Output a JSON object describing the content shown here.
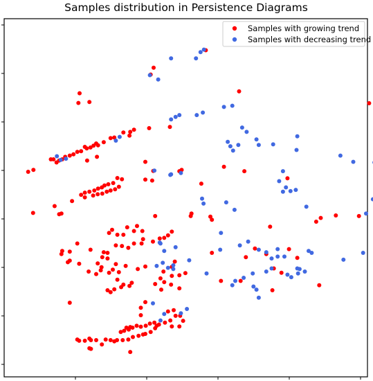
{
  "chart_data": {
    "type": "scatter",
    "title": "Samples distribution in Persistence Diagrams",
    "xlabel": "",
    "ylabel": "",
    "xlim": [
      0,
      1
    ],
    "ylim": [
      0,
      1
    ],
    "grid": false,
    "legend_position": "top-right",
    "series": [
      {
        "name": "Samples with growing trend",
        "color": "#ff0000",
        "points": [
          [
            0.52,
            0.95
          ],
          [
            0.382,
            0.894
          ],
          [
            0.374,
            0.872
          ],
          [
            0.608,
            0.818
          ],
          [
            0.186,
            0.812
          ],
          [
            0.212,
            0.784
          ],
          [
            0.183,
            0.781
          ],
          [
            0.952,
            0.78
          ],
          [
            0.425,
            0.704
          ],
          [
            0.37,
            0.7
          ],
          [
            0.33,
            0.695
          ],
          [
            0.32,
            0.688
          ],
          [
            0.318,
            0.676
          ],
          [
            0.302,
            0.686
          ],
          [
            0.278,
            0.67
          ],
          [
            0.268,
            0.668
          ],
          [
            0.25,
            0.655
          ],
          [
            0.235,
            0.645
          ],
          [
            0.23,
            0.651
          ],
          [
            0.223,
            0.644
          ],
          [
            0.215,
            0.638
          ],
          [
            0.205,
            0.635
          ],
          [
            0.2,
            0.64
          ],
          [
            0.19,
            0.626
          ],
          [
            0.18,
            0.624
          ],
          [
            0.17,
            0.616
          ],
          [
            0.16,
            0.612
          ],
          [
            0.148,
            0.608
          ],
          [
            0.14,
            0.6
          ],
          [
            0.132,
            0.596
          ],
          [
            0.125,
            0.59
          ],
          [
            0.117,
            0.6
          ],
          [
            0.11,
            0.6
          ],
          [
            0.206,
            0.596
          ],
          [
            0.232,
            0.608
          ],
          [
            0.36,
            0.592
          ],
          [
            0.05,
            0.56
          ],
          [
            0.064,
            0.566
          ],
          [
            0.381,
            0.563
          ],
          [
            0.45,
            0.562
          ],
          [
            0.456,
            0.566
          ],
          [
            0.622,
            0.562
          ],
          [
            0.568,
            0.576
          ],
          [
            0.736,
            0.539
          ],
          [
            0.298,
            0.536
          ],
          [
            0.286,
            0.54
          ],
          [
            0.275,
            0.524
          ],
          [
            0.262,
            0.52
          ],
          [
            0.252,
            0.516
          ],
          [
            0.245,
            0.51
          ],
          [
            0.235,
            0.506
          ],
          [
            0.225,
            0.5
          ],
          [
            0.212,
            0.496
          ],
          [
            0.2,
            0.493
          ],
          [
            0.19,
            0.486
          ],
          [
            0.36,
            0.535
          ],
          [
            0.378,
            0.532
          ],
          [
            0.508,
            0.522
          ],
          [
            0.29,
            0.512
          ],
          [
            0.28,
            0.504
          ],
          [
            0.268,
            0.5
          ],
          [
            0.258,
            0.496
          ],
          [
            0.246,
            0.49
          ],
          [
            0.234,
            0.488
          ],
          [
            0.222,
            0.484
          ],
          [
            0.2,
            0.478
          ],
          [
            0.166,
            0.466
          ],
          [
            0.12,
            0.45
          ],
          [
            0.138,
            0.426
          ],
          [
            0.132,
            0.424
          ],
          [
            0.063,
            0.428
          ],
          [
            0.482,
            0.426
          ],
          [
            0.48,
            0.418
          ],
          [
            0.386,
            0.418
          ],
          [
            0.925,
            0.418
          ],
          [
            0.824,
            0.412
          ],
          [
            0.864,
            0.42
          ],
          [
            0.532,
            0.416
          ],
          [
            0.536,
            0.406
          ],
          [
            0.812,
            0.4
          ],
          [
            0.69,
            0.384
          ],
          [
            0.312,
            0.382
          ],
          [
            0.338,
            0.386
          ],
          [
            0.352,
            0.37
          ],
          [
            0.33,
            0.37
          ],
          [
            0.272,
            0.374
          ],
          [
            0.264,
            0.364
          ],
          [
            0.286,
            0.358
          ],
          [
            0.302,
            0.358
          ],
          [
            0.43,
            0.368
          ],
          [
            0.42,
            0.356
          ],
          [
            0.41,
            0.348
          ],
          [
            0.398,
            0.346
          ],
          [
            0.38,
            0.336
          ],
          [
            0.354,
            0.344
          ],
          [
            0.35,
            0.33
          ],
          [
            0.33,
            0.33
          ],
          [
            0.315,
            0.316
          ],
          [
            0.298,
            0.322
          ],
          [
            0.282,
            0.324
          ],
          [
            0.26,
            0.3
          ],
          [
            0.246,
            0.286
          ],
          [
            0.25,
            0.302
          ],
          [
            0.215,
            0.31
          ],
          [
            0.18,
            0.33
          ],
          [
            0.16,
            0.304
          ],
          [
            0.138,
            0.296
          ],
          [
            0.14,
            0.306
          ],
          [
            0.16,
            0.275
          ],
          [
            0.155,
            0.27
          ],
          [
            0.26,
            0.282
          ],
          [
            0.282,
            0.264
          ],
          [
            0.308,
            0.258
          ],
          [
            0.34,
            0.248
          ],
          [
            0.36,
            0.256
          ],
          [
            0.234,
            0.266
          ],
          [
            0.29,
            0.238
          ],
          [
            0.274,
            0.246
          ],
          [
            0.264,
            0.236
          ],
          [
            0.242,
            0.244
          ],
          [
            0.244,
            0.254
          ],
          [
            0.23,
            0.232
          ],
          [
            0.21,
            0.24
          ],
          [
            0.185,
            0.265
          ],
          [
            0.43,
            0.255
          ],
          [
            0.438,
            0.272
          ],
          [
            0.65,
            0.314
          ],
          [
            0.74,
            0.312
          ],
          [
            0.68,
            0.296
          ],
          [
            0.626,
            0.286
          ],
          [
            0.536,
            0.3
          ],
          [
            0.762,
            0.284
          ],
          [
            0.56,
            0.21
          ],
          [
            0.612,
            0.21
          ],
          [
            0.72,
            0.236
          ],
          [
            0.7,
            0.25
          ],
          [
            0.696,
            0.18
          ],
          [
            0.82,
            0.196
          ],
          [
            0.466,
            0.235
          ],
          [
            0.45,
            0.228
          ],
          [
            0.43,
            0.226
          ],
          [
            0.41,
            0.206
          ],
          [
            0.428,
            0.198
          ],
          [
            0.45,
            0.186
          ],
          [
            0.402,
            0.182
          ],
          [
            0.324,
            0.204
          ],
          [
            0.318,
            0.194
          ],
          [
            0.302,
            0.198
          ],
          [
            0.296,
            0.19
          ],
          [
            0.278,
            0.183
          ],
          [
            0.268,
            0.174
          ],
          [
            0.26,
            0.18
          ],
          [
            0.408,
            0.24
          ],
          [
            0.4,
            0.218
          ],
          [
            0.386,
            0.2
          ],
          [
            0.286,
            0.214
          ],
          [
            0.16,
            0.14
          ],
          [
            0.36,
            0.142
          ],
          [
            0.348,
            0.124
          ],
          [
            0.348,
            0.1
          ],
          [
            0.44,
            0.098
          ],
          [
            0.426,
            0.083
          ],
          [
            0.412,
            0.076
          ],
          [
            0.39,
            0.066
          ],
          [
            0.384,
            0.076
          ],
          [
            0.372,
            0.073
          ],
          [
            0.361,
            0.066
          ],
          [
            0.348,
            0.063
          ],
          [
            0.337,
            0.066
          ],
          [
            0.326,
            0.06
          ],
          [
            0.316,
            0.054
          ],
          [
            0.304,
            0.05
          ],
          [
            0.31,
            0.06
          ],
          [
            0.295,
            0.046
          ],
          [
            0.32,
            0.062
          ],
          [
            0.42,
            0.112
          ],
          [
            0.435,
            0.116
          ],
          [
            0.452,
            0.098
          ],
          [
            0.46,
            0.082
          ],
          [
            0.43,
            0.064
          ],
          [
            0.45,
            0.064
          ],
          [
            0.396,
            0.07
          ],
          [
            0.386,
            0.058
          ],
          [
            0.374,
            0.046
          ],
          [
            0.36,
            0.04
          ],
          [
            0.342,
            0.034
          ],
          [
            0.354,
            0.038
          ],
          [
            0.327,
            0.03
          ],
          [
            0.315,
            0.022
          ],
          [
            0.3,
            0.02
          ],
          [
            0.285,
            0.02
          ],
          [
            0.268,
            0.02
          ],
          [
            0.255,
            0.022
          ],
          [
            0.23,
            0.02
          ],
          [
            0.212,
            0.025
          ],
          [
            0.18,
            0.022
          ],
          [
            0.2,
            0.018
          ],
          [
            0.216,
            0.02
          ],
          [
            0.245,
            0.006
          ],
          [
            0.32,
            -0.018
          ],
          [
            0.278,
            0.016
          ],
          [
            0.212,
            -0.006
          ],
          [
            0.216,
            -0.008
          ],
          [
            0.185,
            0.018
          ]
        ]
      },
      {
        "name": "Samples with decreasing trend",
        "color": "#4169e1",
        "points": [
          [
            0.515,
            0.952
          ],
          [
            0.506,
            0.944
          ],
          [
            0.494,
            0.924
          ],
          [
            0.428,
            0.924
          ],
          [
            0.372,
            0.87
          ],
          [
            0.394,
            0.856
          ],
          [
            0.496,
            0.742
          ],
          [
            0.512,
            0.75
          ],
          [
            0.45,
            0.742
          ],
          [
            0.44,
            0.736
          ],
          [
            0.428,
            0.728
          ],
          [
            0.568,
            0.768
          ],
          [
            0.59,
            0.772
          ],
          [
            0.292,
            0.672
          ],
          [
            0.282,
            0.66
          ],
          [
            0.15,
            0.602
          ],
          [
            0.136,
            0.598
          ],
          [
            0.126,
            0.61
          ],
          [
            0.616,
            0.702
          ],
          [
            0.628,
            0.688
          ],
          [
            0.578,
            0.656
          ],
          [
            0.585,
            0.642
          ],
          [
            0.592,
            0.628
          ],
          [
            0.606,
            0.646
          ],
          [
            0.654,
            0.664
          ],
          [
            0.66,
            0.646
          ],
          [
            0.698,
            0.648
          ],
          [
            0.762,
            0.674
          ],
          [
            0.76,
            0.63
          ],
          [
            0.876,
            0.612
          ],
          [
            0.91,
            0.592
          ],
          [
            0.966,
            0.59
          ],
          [
            0.384,
            0.564
          ],
          [
            0.428,
            0.552
          ],
          [
            0.454,
            0.556
          ],
          [
            0.426,
            0.55
          ],
          [
            0.724,
            0.562
          ],
          [
            0.714,
            0.53
          ],
          [
            0.732,
            0.51
          ],
          [
            0.744,
            0.498
          ],
          [
            0.758,
            0.502
          ],
          [
            0.724,
            0.496
          ],
          [
            0.51,
            0.474
          ],
          [
            0.514,
            0.458
          ],
          [
            0.574,
            0.462
          ],
          [
            0.596,
            0.438
          ],
          [
            0.786,
            0.448
          ],
          [
            0.962,
            0.472
          ],
          [
            0.944,
            0.426
          ],
          [
            0.398,
            0.333
          ],
          [
            0.4,
            0.33
          ],
          [
            0.44,
            0.318
          ],
          [
            0.632,
            0.336
          ],
          [
            0.66,
            0.31
          ],
          [
            0.68,
            0.302
          ],
          [
            0.694,
            0.282
          ],
          [
            0.71,
            0.288
          ],
          [
            0.728,
            0.288
          ],
          [
            0.792,
            0.306
          ],
          [
            0.8,
            0.3
          ],
          [
            0.768,
            0.248
          ],
          [
            0.782,
            0.24
          ],
          [
            0.762,
            0.25
          ],
          [
            0.736,
            0.23
          ],
          [
            0.694,
            0.25
          ],
          [
            0.644,
            0.234
          ],
          [
            0.646,
            0.192
          ],
          [
            0.654,
            0.182
          ],
          [
            0.66,
            0.156
          ],
          [
            0.598,
            0.21
          ],
          [
            0.59,
            0.196
          ],
          [
            0.522,
            0.234
          ],
          [
            0.558,
            0.31
          ],
          [
            0.476,
            0.276
          ],
          [
            0.434,
            0.26
          ],
          [
            0.39,
            0.258
          ],
          [
            0.406,
            0.268
          ],
          [
            0.434,
            0.248
          ],
          [
            0.884,
            0.278
          ],
          [
            0.936,
            0.3
          ],
          [
            0.62,
            0.22
          ],
          [
            0.42,
            0.252
          ],
          [
            0.746,
            0.222
          ],
          [
            0.764,
            0.234
          ],
          [
            0.68,
            0.24
          ],
          [
            0.56,
            0.364
          ],
          [
            0.61,
            0.324
          ],
          [
            0.71,
            0.312
          ],
          [
            0.41,
            0.306
          ],
          [
            0.38,
            0.138
          ],
          [
            0.47,
            0.12
          ],
          [
            0.454,
            0.106
          ],
          [
            0.4,
            0.083
          ],
          [
            0.41,
            0.104
          ]
        ]
      }
    ]
  }
}
